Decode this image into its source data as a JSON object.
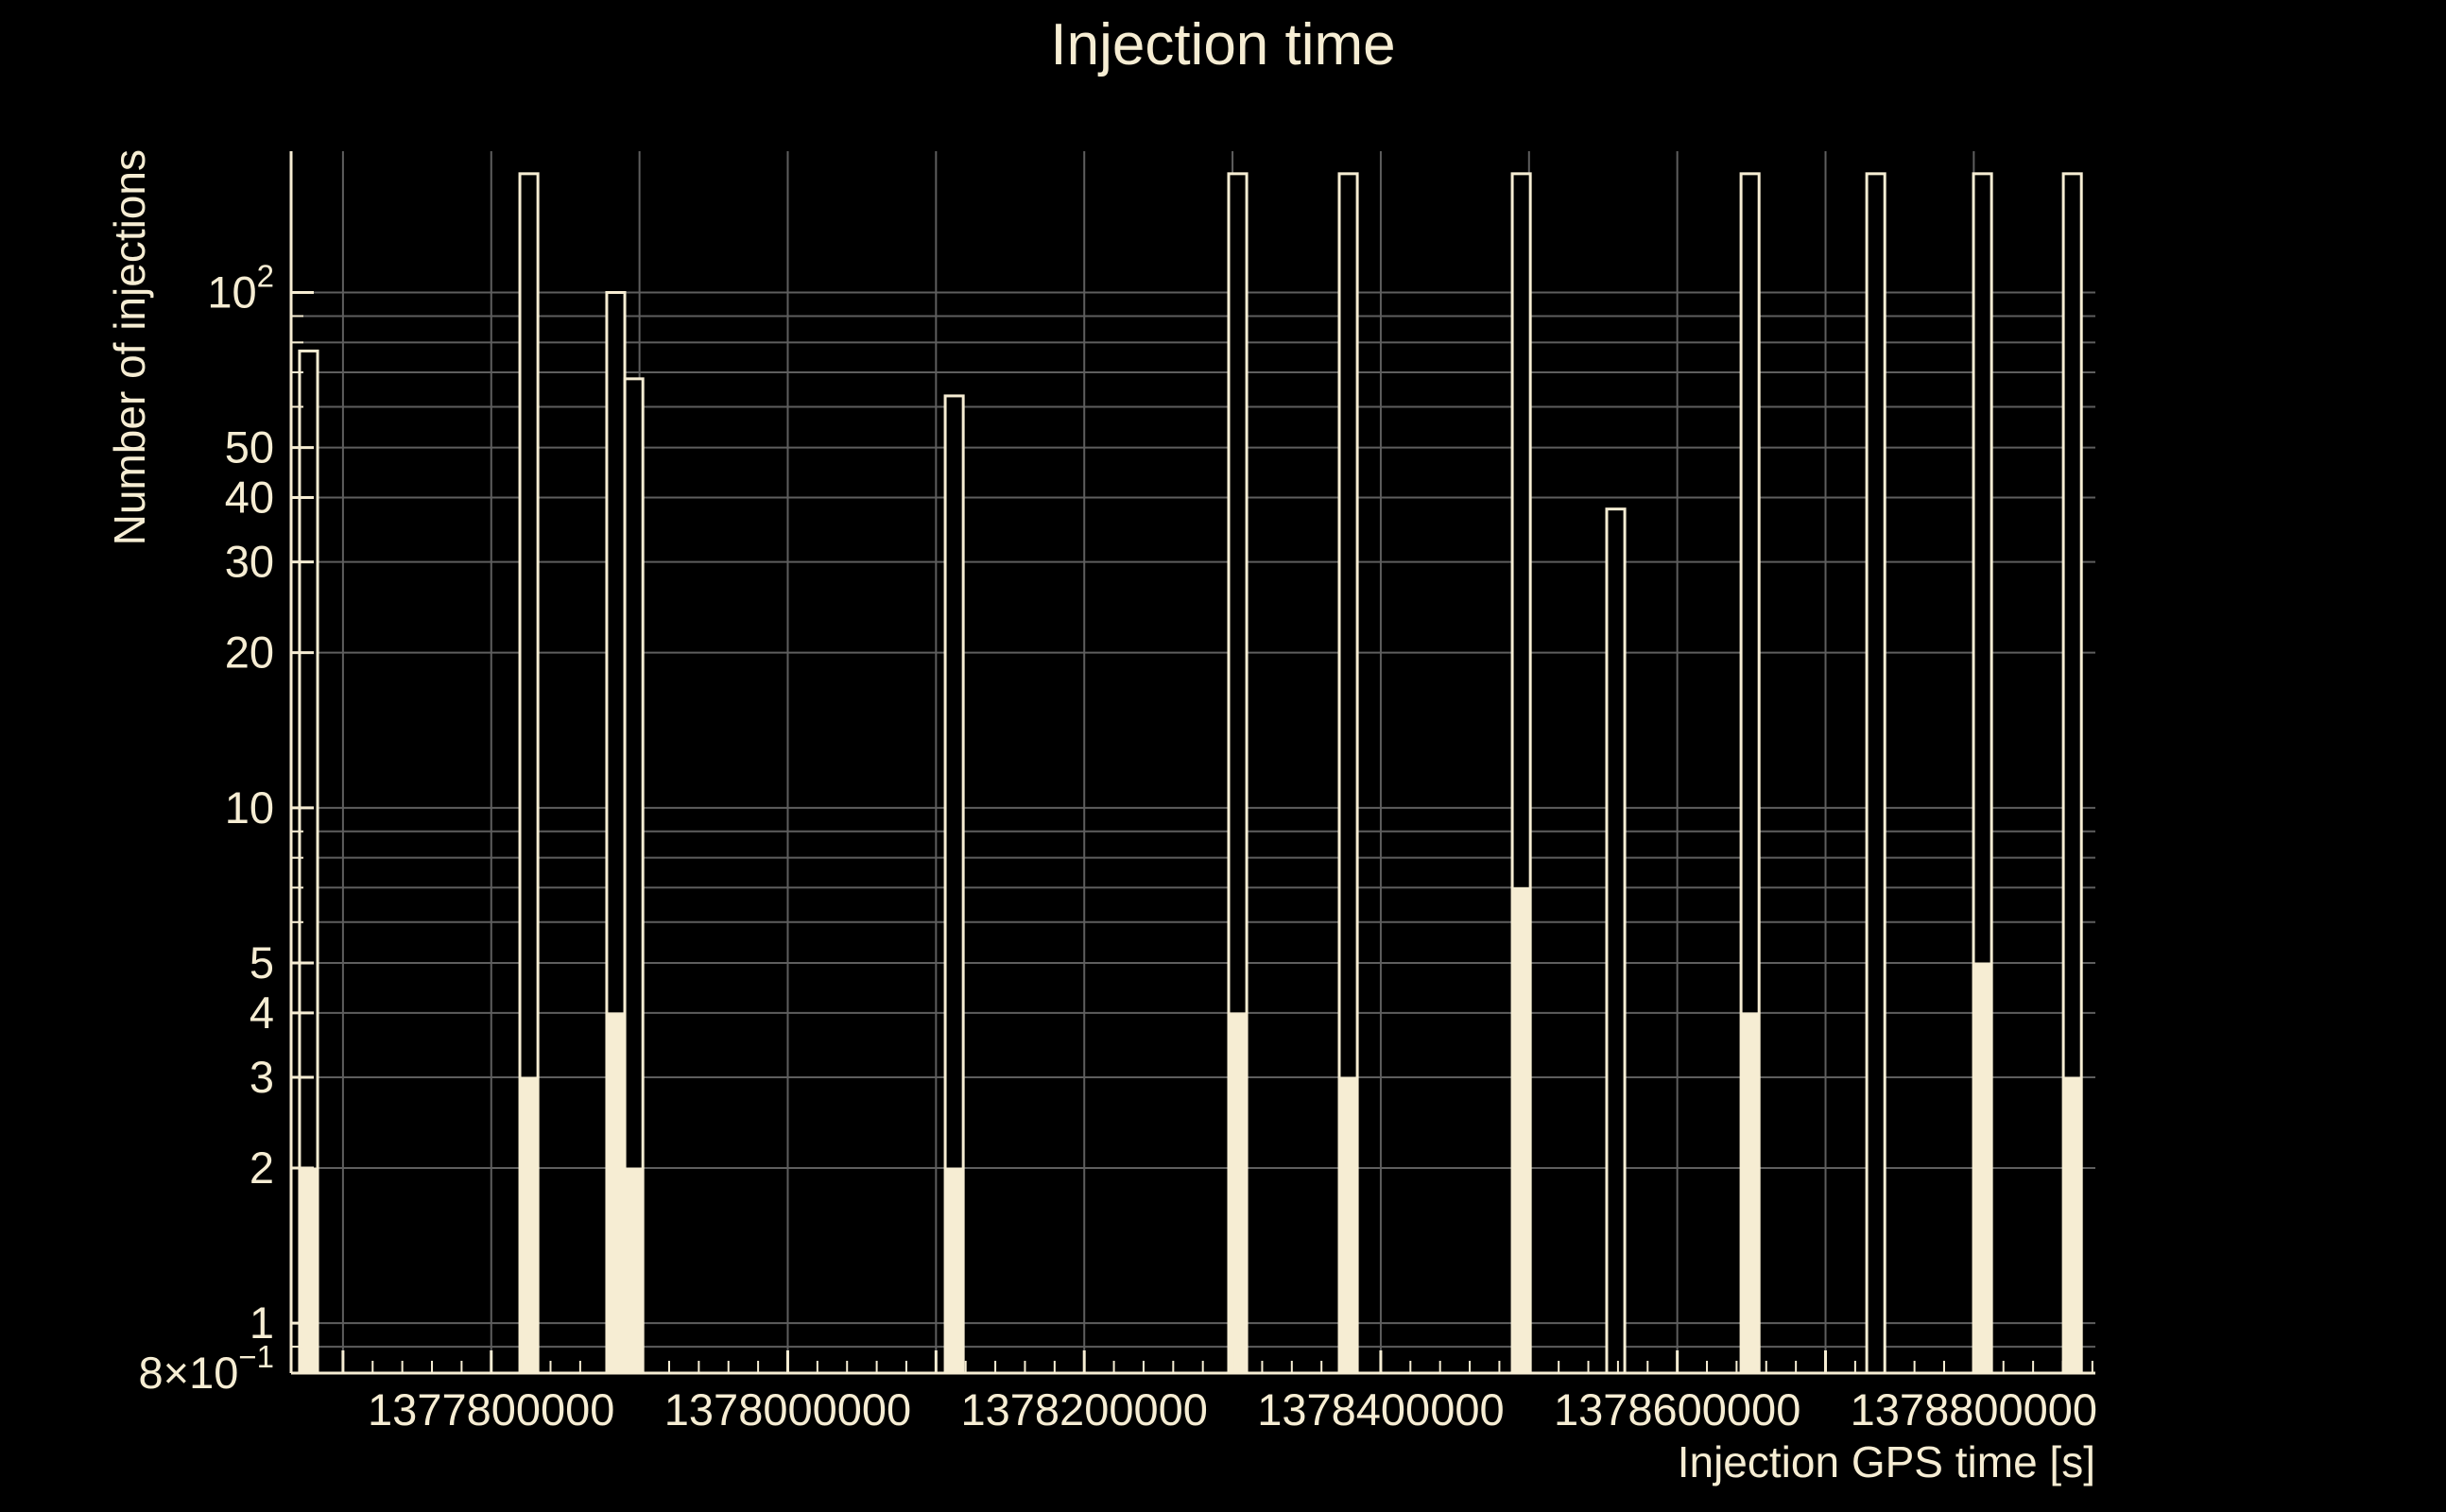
{
  "page": {
    "background": "#000000"
  },
  "chart_data": {
    "type": "bar",
    "title": "Injection time",
    "xlabel": "Injection GPS time [s]",
    "ylabel": "Number of injections",
    "legend": false,
    "grid": true,
    "colors": {
      "foreground": "#F6EDD3",
      "background": "#000000",
      "grid": "#5e5e5e"
    },
    "x_axis": {
      "min": 1377665000,
      "max": 1378882000,
      "major_tick_values": [
        1377800000,
        1378000000,
        1378200000,
        1378400000,
        1378600000,
        1378800000
      ],
      "major_tick_labels": [
        "1377800000",
        "1378000000",
        "1378200000",
        "1378400000",
        "1378600000",
        "1378800000"
      ],
      "grid_spacing": 100000,
      "minor_tick_spacing": 20000
    },
    "y_axis": {
      "scale": "log",
      "min": 0.8,
      "max": 188,
      "tick_labels": [
        {
          "value": 100,
          "base": "10",
          "sup": "2"
        },
        {
          "value": 50,
          "base": "50"
        },
        {
          "value": 40,
          "base": "40"
        },
        {
          "value": 30,
          "base": "30"
        },
        {
          "value": 20,
          "base": "20"
        },
        {
          "value": 10,
          "base": "10"
        },
        {
          "value": 5,
          "base": "5"
        },
        {
          "value": 4,
          "base": "4"
        },
        {
          "value": 3,
          "base": "3"
        },
        {
          "value": 2,
          "base": "2"
        },
        {
          "value": 1,
          "base": "1"
        },
        {
          "value": 0.8,
          "base": "8×10",
          "sup": "−1"
        }
      ],
      "grid_values": [
        0.9,
        1,
        2,
        3,
        4,
        5,
        6,
        7,
        8,
        9,
        10,
        20,
        30,
        40,
        50,
        60,
        70,
        80,
        90,
        100
      ]
    },
    "bin_width_s": 12170,
    "series": [
      {
        "name": "outline-histogram",
        "style": "outline"
      },
      {
        "name": "filled-histogram",
        "style": "filled"
      }
    ],
    "bars": [
      {
        "gps": 1377670700,
        "outline": 77,
        "fill": 2
      },
      {
        "gps": 1377819300,
        "outline": 170,
        "fill": 3
      },
      {
        "gps": 1377877900,
        "outline": 100,
        "fill": 4
      },
      {
        "gps": 1377890100,
        "outline": 68,
        "fill": 2
      },
      {
        "gps": 1378106200,
        "outline": 63,
        "fill": 2
      },
      {
        "gps": 1378297400,
        "outline": 170,
        "fill": 4
      },
      {
        "gps": 1378372000,
        "outline": 170,
        "fill": 3
      },
      {
        "gps": 1378488700,
        "outline": 170,
        "fill": 7
      },
      {
        "gps": 1378552400,
        "outline": 38,
        "fill": 0
      },
      {
        "gps": 1378643000,
        "outline": 170,
        "fill": 4
      },
      {
        "gps": 1378727800,
        "outline": 170,
        "fill": 0
      },
      {
        "gps": 1378799800,
        "outline": 170,
        "fill": 5
      },
      {
        "gps": 1378860400,
        "outline": 170,
        "fill": 3
      }
    ]
  }
}
